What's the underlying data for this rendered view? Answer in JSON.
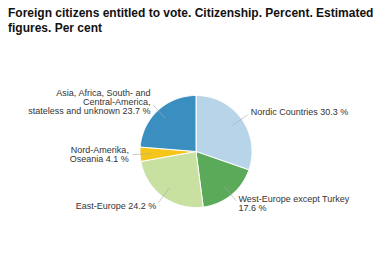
{
  "chart_data": {
    "type": "pie",
    "title": "Foreign citizens entitled to vote. Citizenship. Percent. Estimated figures. Per cent",
    "categories": [
      "Nordic Countries 30.3 %",
      "West-Europe except Turkey\n17.6 %",
      "East-Europe 24.2 %",
      "Nord-Amerika,\nOseania 4.1 %",
      "Asia, Africa, South- and\nCentral-America,\nstateless and unknown 23.7 %"
    ],
    "values": [
      30.3,
      17.6,
      24.2,
      4.1,
      23.7
    ],
    "colors": [
      "#b8d4e8",
      "#5aaa5a",
      "#c8e0a0",
      "#f5c518",
      "#3a8fc0"
    ]
  }
}
